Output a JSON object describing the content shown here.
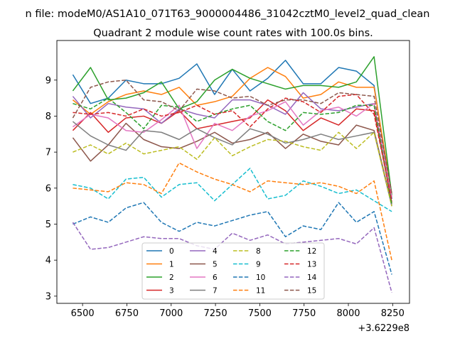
{
  "chart_data": {
    "type": "line",
    "suptitle": "n file: modeM0/AS1A10_071T63_9000004486_31042cztM0_level2_quad_clean",
    "title": "Quadrant 2 module wise count rates with 100.0s bins.",
    "xlabel": "",
    "ylabel": "",
    "x_offset_label": "+3.6229e8",
    "xlim": [
      6355,
      8345
    ],
    "ylim": [
      2.8,
      10.1
    ],
    "xticks": [
      6500,
      6750,
      7000,
      7250,
      7500,
      7750,
      8000,
      8250
    ],
    "yticks": [
      3,
      4,
      5,
      6,
      7,
      8,
      9
    ],
    "x": [
      6445,
      6545,
      6645,
      6745,
      6845,
      6945,
      7045,
      7145,
      7245,
      7345,
      7445,
      7545,
      7645,
      7745,
      7845,
      7945,
      8045,
      8145,
      8245
    ],
    "series": [
      {
        "name": "0",
        "color": "#1f77b4",
        "dash": "solid",
        "values": [
          9.15,
          8.35,
          8.5,
          9.0,
          8.9,
          8.9,
          9.05,
          9.45,
          8.6,
          9.3,
          8.7,
          9.05,
          9.55,
          8.9,
          8.9,
          9.35,
          9.25,
          8.85,
          5.7
        ]
      },
      {
        "name": "1",
        "color": "#ff7f0e",
        "dash": "solid",
        "values": [
          8.45,
          8.05,
          8.4,
          8.6,
          8.7,
          8.6,
          8.8,
          8.3,
          8.4,
          8.55,
          9.05,
          9.35,
          9.1,
          8.5,
          8.6,
          8.95,
          8.8,
          8.8,
          5.85
        ]
      },
      {
        "name": "2",
        "color": "#2ca02c",
        "dash": "solid",
        "values": [
          8.7,
          9.35,
          8.45,
          8.5,
          8.65,
          8.95,
          8.2,
          8.4,
          9.0,
          9.3,
          9.05,
          8.9,
          8.75,
          8.85,
          8.85,
          8.8,
          8.95,
          9.65,
          5.8
        ]
      },
      {
        "name": "3",
        "color": "#d62728",
        "dash": "solid",
        "values": [
          7.6,
          8.1,
          7.55,
          7.95,
          8.0,
          7.8,
          8.15,
          7.65,
          7.75,
          7.85,
          7.95,
          8.45,
          8.15,
          7.6,
          7.95,
          7.75,
          8.2,
          8.15,
          5.6
        ]
      },
      {
        "name": "4",
        "color": "#9467bd",
        "dash": "solid",
        "values": [
          8.55,
          7.95,
          8.35,
          8.25,
          8.2,
          7.8,
          8.2,
          8.05,
          7.95,
          8.45,
          8.45,
          8.3,
          8.05,
          8.65,
          8.2,
          8.15,
          8.25,
          8.35,
          5.75
        ]
      },
      {
        "name": "5",
        "color": "#8c564b",
        "dash": "solid",
        "values": [
          7.4,
          6.75,
          7.2,
          7.8,
          7.35,
          7.15,
          7.1,
          7.3,
          7.55,
          7.25,
          7.35,
          7.55,
          7.1,
          7.5,
          7.3,
          7.2,
          7.75,
          7.6,
          5.55
        ]
      },
      {
        "name": "6",
        "color": "#e377c2",
        "dash": "solid",
        "values": [
          7.7,
          8.05,
          7.95,
          7.6,
          7.55,
          7.9,
          8.3,
          7.1,
          7.8,
          7.6,
          8.0,
          8.15,
          8.4,
          7.75,
          8.15,
          8.25,
          8.0,
          8.35,
          5.75
        ]
      },
      {
        "name": "7",
        "color": "#7f7f7f",
        "dash": "solid",
        "values": [
          7.85,
          7.45,
          7.2,
          7.05,
          7.6,
          7.55,
          7.35,
          7.65,
          7.4,
          7.2,
          7.65,
          7.5,
          7.25,
          7.35,
          7.5,
          7.35,
          7.45,
          7.55,
          5.5
        ]
      },
      {
        "name": "8",
        "color": "#bcbd22",
        "dash": "dashed",
        "values": [
          7.0,
          7.2,
          6.95,
          7.25,
          6.95,
          7.05,
          7.15,
          6.8,
          7.4,
          6.9,
          7.15,
          7.35,
          7.3,
          7.15,
          7.05,
          7.55,
          7.1,
          7.55,
          5.5
        ]
      },
      {
        "name": "9",
        "color": "#17becf",
        "dash": "dashed",
        "values": [
          6.1,
          6.0,
          5.7,
          6.25,
          6.3,
          5.75,
          6.1,
          6.15,
          5.65,
          6.1,
          6.55,
          5.7,
          5.8,
          6.2,
          6.05,
          5.85,
          5.95,
          5.65,
          5.35
        ]
      },
      {
        "name": "10",
        "color": "#1f77b4",
        "dash": "dashed",
        "values": [
          5.0,
          5.2,
          5.05,
          5.45,
          5.6,
          5.05,
          4.8,
          5.05,
          4.95,
          5.1,
          5.25,
          5.35,
          4.65,
          4.95,
          4.85,
          5.6,
          5.05,
          5.35,
          3.6
        ]
      },
      {
        "name": "11",
        "color": "#ff7f0e",
        "dash": "dashed",
        "values": [
          6.0,
          5.95,
          5.9,
          6.15,
          6.1,
          5.85,
          6.7,
          6.45,
          6.25,
          6.1,
          5.9,
          6.2,
          6.15,
          6.1,
          6.15,
          6.05,
          5.85,
          6.2,
          4.0
        ]
      },
      {
        "name": "12",
        "color": "#2ca02c",
        "dash": "dashed",
        "values": [
          8.35,
          8.2,
          8.5,
          8.1,
          7.65,
          8.3,
          8.25,
          7.85,
          8.05,
          8.2,
          8.3,
          7.85,
          7.6,
          8.1,
          8.05,
          8.1,
          8.3,
          8.3,
          5.55
        ]
      },
      {
        "name": "13",
        "color": "#d62728",
        "dash": "dashed",
        "values": [
          8.1,
          8.05,
          8.1,
          8.0,
          8.2,
          8.0,
          8.1,
          8.3,
          8.05,
          8.15,
          7.7,
          8.2,
          8.5,
          8.4,
          8.1,
          8.55,
          8.6,
          8.05,
          5.65
        ]
      },
      {
        "name": "14",
        "color": "#9467bd",
        "dash": "dashed",
        "values": [
          5.05,
          4.3,
          4.35,
          4.5,
          4.65,
          4.6,
          4.6,
          4.4,
          4.3,
          4.75,
          4.55,
          4.7,
          4.45,
          4.5,
          4.55,
          4.6,
          4.45,
          4.9,
          3.1
        ]
      },
      {
        "name": "15",
        "color": "#8c564b",
        "dash": "dashed",
        "values": [
          7.95,
          8.8,
          8.95,
          9.0,
          8.45,
          8.4,
          8.15,
          8.75,
          8.7,
          8.5,
          8.55,
          8.3,
          8.45,
          8.45,
          8.35,
          8.65,
          8.6,
          8.55,
          5.85
        ]
      }
    ],
    "legend": {
      "placement": "bottom-center",
      "columns": 4
    },
    "grid": false
  }
}
